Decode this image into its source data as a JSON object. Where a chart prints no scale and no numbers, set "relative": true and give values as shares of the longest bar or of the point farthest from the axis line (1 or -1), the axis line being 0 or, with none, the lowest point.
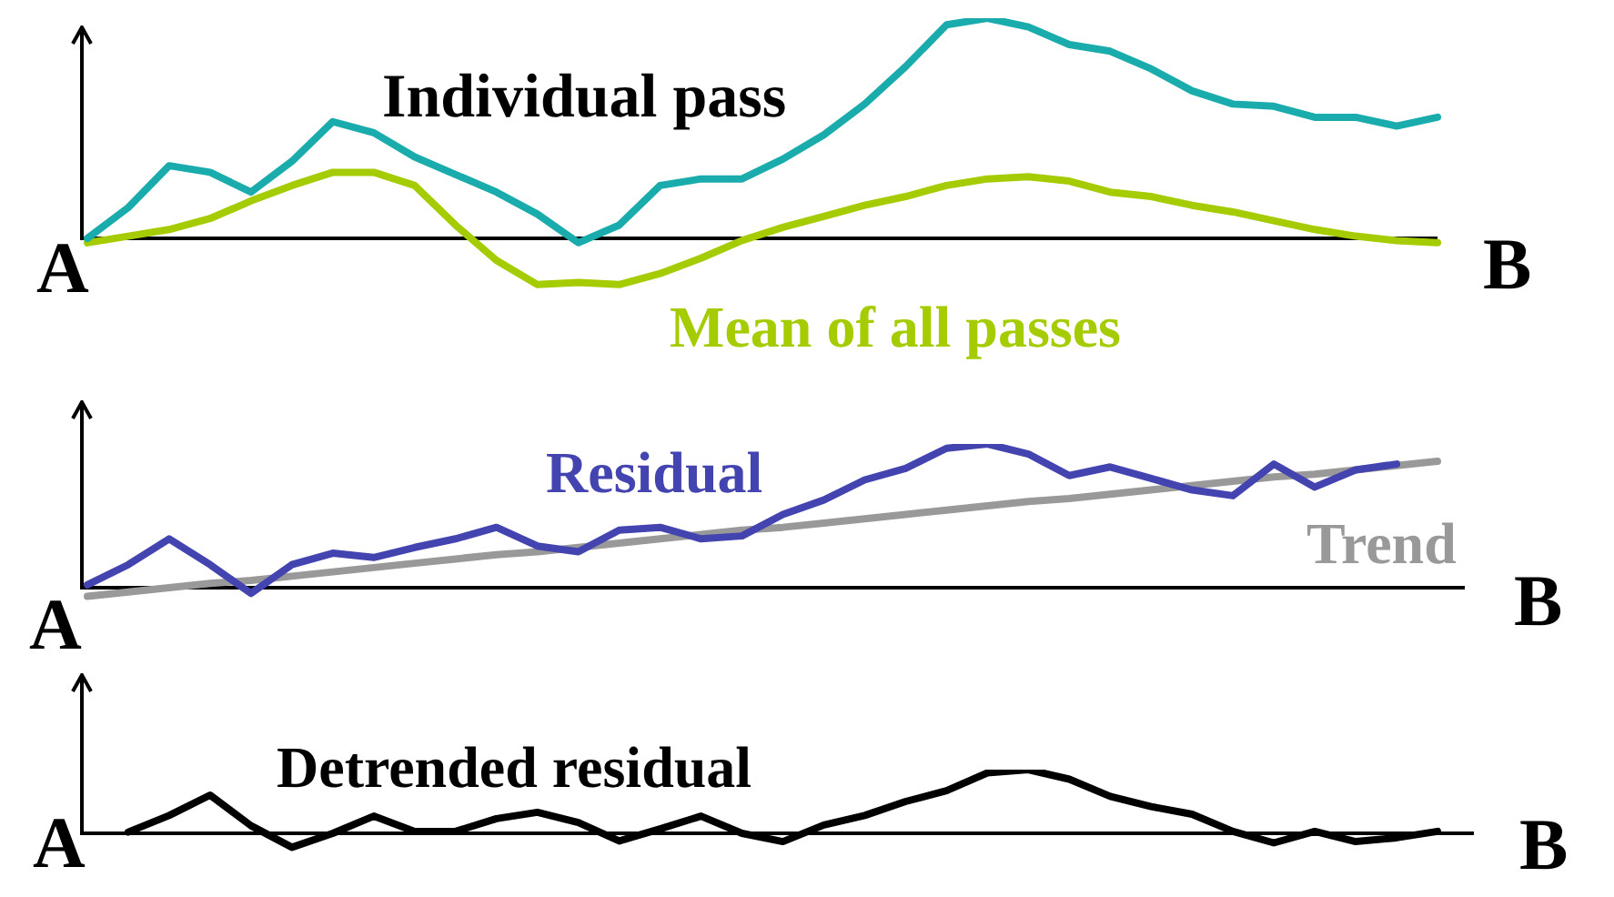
{
  "chart_data": [
    {
      "type": "line",
      "relative": true,
      "legend": false,
      "marker": "none",
      "categories": [
        null,
        null,
        null,
        null,
        null,
        null,
        null,
        null,
        null,
        null,
        null,
        null,
        null,
        null,
        null,
        null,
        null,
        null,
        null,
        null,
        null,
        null,
        null,
        null,
        null,
        null,
        null,
        null,
        null,
        null,
        null,
        null,
        null,
        null
      ],
      "annotations": [
        "A",
        "B"
      ],
      "series": [
        {
          "name": "Individual pass",
          "color": "#1aacac",
          "values": [
            0,
            0.14,
            0.33,
            0.3,
            0.21,
            0.35,
            0.53,
            0.48,
            0.37,
            0.29,
            0.21,
            0.11,
            -0.02,
            0.06,
            0.24,
            0.27,
            0.27,
            0.36,
            0.47,
            0.61,
            0.78,
            0.97,
            1.0,
            0.96,
            0.88,
            0.85,
            0.77,
            0.67,
            0.61,
            0.6,
            0.55,
            0.55,
            0.51,
            0.55
          ]
        },
        {
          "name": "Mean of all passes",
          "color": "#a4cc00",
          "values": [
            -0.02,
            0.01,
            0.04,
            0.09,
            0.17,
            0.24,
            0.3,
            0.3,
            0.24,
            0.06,
            -0.1,
            -0.21,
            -0.2,
            -0.21,
            -0.16,
            -0.09,
            -0.01,
            0.05,
            0.1,
            0.15,
            0.19,
            0.24,
            0.27,
            0.28,
            0.26,
            0.21,
            0.19,
            0.15,
            0.12,
            0.08,
            0.04,
            0.01,
            -0.01,
            -0.02
          ]
        }
      ]
    },
    {
      "type": "line",
      "relative": true,
      "legend": false,
      "marker": "none",
      "categories": [
        null,
        null,
        null,
        null,
        null,
        null,
        null,
        null,
        null,
        null,
        null,
        null,
        null,
        null,
        null,
        null,
        null,
        null,
        null,
        null,
        null,
        null,
        null,
        null,
        null,
        null,
        null,
        null,
        null,
        null,
        null,
        null,
        null,
        null
      ],
      "annotations": [
        "A",
        "B"
      ],
      "series": [
        {
          "name": "Residual",
          "color": "#4444b0",
          "values": [
            0.02,
            0.16,
            0.34,
            0.16,
            -0.04,
            0.16,
            0.24,
            0.21,
            0.28,
            0.34,
            0.42,
            0.29,
            0.25,
            0.4,
            0.42,
            0.34,
            0.36,
            0.51,
            0.61,
            0.75,
            0.83,
            0.97,
            1.0,
            0.93,
            0.78,
            0.84,
            0.76,
            0.68,
            0.64,
            0.86,
            0.7,
            0.82,
            0.86,
            null
          ]
        },
        {
          "name": "Trend",
          "color": "#999999",
          "values": [
            -0.06,
            -0.03,
            0.0,
            0.03,
            0.05,
            0.08,
            0.11,
            0.14,
            0.17,
            0.2,
            0.23,
            0.25,
            0.28,
            0.31,
            0.34,
            0.37,
            0.4,
            0.42,
            0.45,
            0.48,
            0.51,
            0.54,
            0.57,
            0.6,
            0.62,
            0.65,
            0.68,
            0.71,
            0.74,
            0.77,
            0.79,
            0.82,
            0.85,
            0.88
          ]
        }
      ]
    },
    {
      "type": "line",
      "relative": true,
      "legend": false,
      "marker": "none",
      "categories": [
        null,
        null,
        null,
        null,
        null,
        null,
        null,
        null,
        null,
        null,
        null,
        null,
        null,
        null,
        null,
        null,
        null,
        null,
        null,
        null,
        null,
        null,
        null,
        null,
        null,
        null,
        null,
        null,
        null,
        null,
        null,
        null,
        null,
        null
      ],
      "annotations": [
        "A",
        "B"
      ],
      "series": [
        {
          "name": "Detrended residual",
          "color": "#000000",
          "values": [
            null,
            0.02,
            0.28,
            0.6,
            0.12,
            -0.22,
            0.0,
            0.27,
            0.03,
            0.03,
            0.23,
            0.33,
            0.17,
            -0.12,
            0.07,
            0.27,
            0.0,
            -0.13,
            0.13,
            0.28,
            0.5,
            0.67,
            0.95,
            1.0,
            0.85,
            0.58,
            0.42,
            0.3,
            0.03,
            -0.15,
            0.03,
            -0.13,
            -0.07,
            0.03
          ]
        }
      ]
    }
  ]
}
